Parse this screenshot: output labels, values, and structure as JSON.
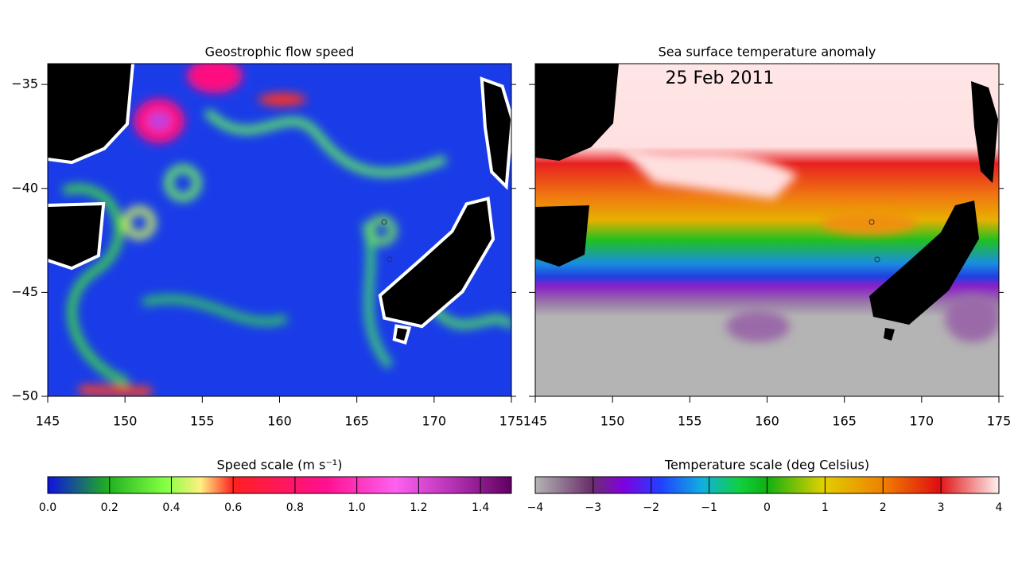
{
  "panels": [
    {
      "title": "Geostrophic flow speed",
      "xlim": [
        145,
        175
      ],
      "ylim": [
        -50,
        -34
      ],
      "xticks": [
        145,
        150,
        155,
        160,
        165,
        170,
        175
      ],
      "yticks": [
        -50,
        -45,
        -40,
        -35
      ],
      "colorbar": {
        "label": "Speed scale (m s⁻¹)",
        "lim": [
          0,
          1.5
        ],
        "ticks": [
          {
            "value": 0,
            "label": "0.0"
          },
          {
            "value": 0.2,
            "label": "0.2"
          },
          {
            "value": 0.4,
            "label": "0.4"
          },
          {
            "value": 0.6,
            "label": "0.6"
          },
          {
            "value": 0.8,
            "label": "0.8"
          },
          {
            "value": 1,
            "label": "1.0"
          },
          {
            "value": 1.2,
            "label": "1.2"
          },
          {
            "value": 1.4,
            "label": "1.4"
          }
        ]
      }
    },
    {
      "title": "Sea surface temperature anomaly",
      "date": "25 Feb 2011",
      "xlim": [
        145,
        175
      ],
      "ylim": [
        -50,
        -34
      ],
      "xticks": [
        145,
        150,
        155,
        160,
        165,
        170,
        175
      ],
      "yticks": [
        -50,
        -45,
        -40,
        -35
      ],
      "colorbar": {
        "label": "Temperature scale (deg Celsius)",
        "lim": [
          -4,
          4
        ],
        "ticks": [
          -4,
          -3,
          -2,
          -1,
          0,
          1,
          2,
          3,
          4
        ]
      }
    }
  ]
}
